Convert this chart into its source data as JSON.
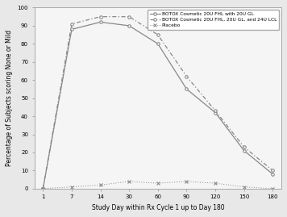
{
  "x": [
    1,
    7,
    14,
    30,
    60,
    90,
    120,
    150,
    180
  ],
  "series1": {
    "label": "BOTOX Cosmetic 20U FHL with 20U GL",
    "y": [
      0,
      88,
      92,
      90,
      80,
      55,
      42,
      21,
      8
    ],
    "color": "#888888",
    "linestyle": "-",
    "marker": "o",
    "markersize": 2.5
  },
  "series2": {
    "label": "BOTOX Cosmetic 20U FHL, 20U GL, and 24U LCL",
    "y": [
      0,
      91,
      95,
      95,
      85,
      62,
      43,
      23,
      10
    ],
    "color": "#888888",
    "linestyle": "--",
    "marker": "o",
    "markersize": 2.5
  },
  "series3": {
    "label": "Placebo",
    "y": [
      0,
      1,
      2,
      4,
      3,
      4,
      3,
      1,
      0
    ],
    "color": "#888888",
    "linestyle": ":",
    "marker": "x",
    "markersize": 3
  },
  "xlabel": "Study Day within Rx Cycle 1 up to Day 180",
  "ylabel": "Percentage of Subjects scoring None or Mild",
  "ylim": [
    0,
    100
  ],
  "xtick_positions": [
    0,
    1,
    2,
    3,
    4,
    5,
    6,
    7,
    8
  ],
  "xtick_labels": [
    "1",
    "7",
    "14",
    "30",
    "60",
    "90",
    "120",
    "150",
    "180"
  ],
  "yticks": [
    0,
    10,
    20,
    30,
    40,
    50,
    60,
    70,
    80,
    90,
    100
  ],
  "background_color": "#e8e8e8",
  "plot_background": "#f5f5f5"
}
